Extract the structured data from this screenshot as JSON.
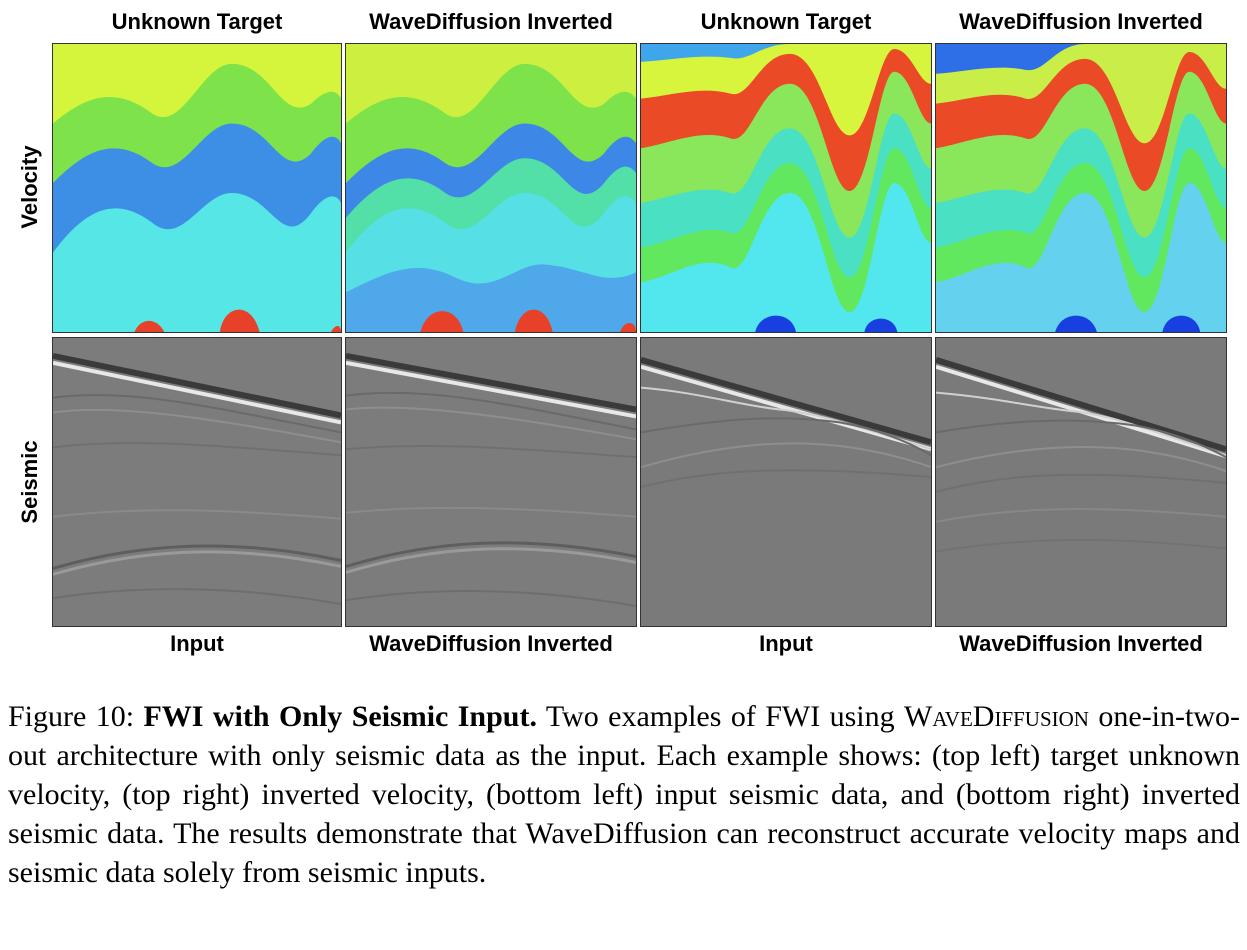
{
  "figure": {
    "column_titles": [
      "Unknown Target",
      "WaveDiffusion Inverted",
      "Unknown Target",
      "WaveDiffusion Inverted"
    ],
    "row_labels": {
      "velocity": "Velocity",
      "seismic": "Seismic"
    },
    "bottom_labels": [
      "Input",
      "WaveDiffusion Inverted",
      "Input",
      "WaveDiffusion Inverted"
    ],
    "panels": {
      "velocity_colors": {
        "example1": [
          "#d4f53c",
          "#7ee24a",
          "#3d8fe6",
          "#56e6e6",
          "#e8412a"
        ],
        "example2": [
          "#3fa6ec",
          "#d7f53c",
          "#eb4a26",
          "#8ae65a",
          "#4ae0c4",
          "#62e85e",
          "#52e6ee",
          "#1840e0"
        ]
      },
      "seismic_colors": {
        "background": "#7c7c7c",
        "bright": "#e8e8e8",
        "dark": "#3a3a3a"
      }
    }
  },
  "caption": {
    "label": "Figure 10:",
    "title": "FWI with Only Seismic Input.",
    "text_part1": "Two examples of FWI using",
    "method_name": "WaveDiffusion",
    "text_part2": "one-in-two-out architecture with only seismic data as the input. Each example shows: (top left) target unknown velocity, (top right) inverted velocity, (bottom left) input seismic data, and (bottom right) inverted seismic data. The results demonstrate that WaveDiffusion can reconstruct accurate velocity maps and seismic data solely from seismic inputs."
  }
}
